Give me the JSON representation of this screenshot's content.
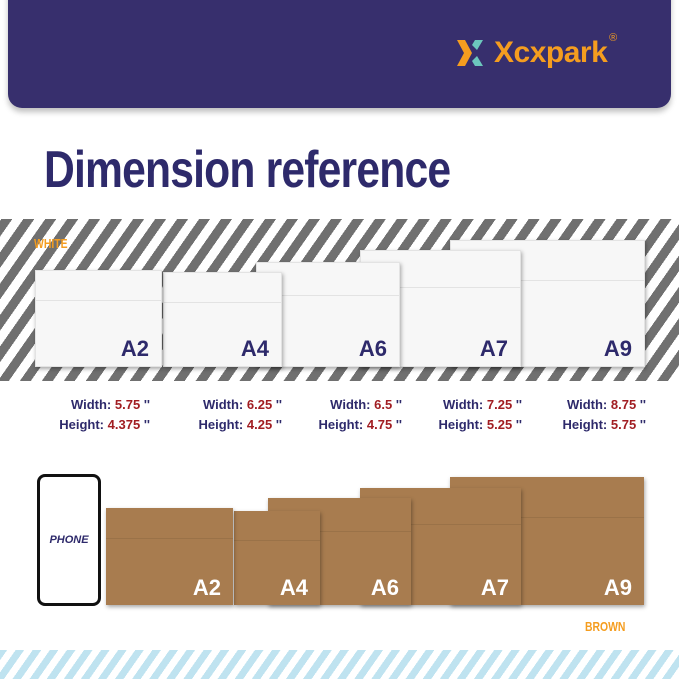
{
  "brand": {
    "name": "Xcxpark",
    "registered": "®",
    "icon": "x-logo-icon",
    "colors": {
      "banner": "#372f6d",
      "orange": "#f59d1f",
      "teal": "#6cc7bd"
    }
  },
  "title": "Dimension reference",
  "white": {
    "label": "WHITE",
    "envelopes": [
      "A2",
      "A4",
      "A6",
      "A7",
      "A9"
    ]
  },
  "dimensions": [
    {
      "width_label": "Width:",
      "width": "5.75",
      "height_label": "Height:",
      "height": "4.375",
      "unit": "''"
    },
    {
      "width_label": "Width:",
      "width": "6.25",
      "height_label": "Height:",
      "height": "4.25",
      "unit": "''"
    },
    {
      "width_label": "Width:",
      "width": "6.5",
      "height_label": "Height:",
      "height": "4.75",
      "unit": "''"
    },
    {
      "width_label": "Width:",
      "width": "7.25",
      "height_label": "Height:",
      "height": "5.25",
      "unit": "''"
    },
    {
      "width_label": "Width:",
      "width": "8.75",
      "height_label": "Height:",
      "height": "5.75",
      "unit": "''"
    }
  ],
  "phone": "PHONE",
  "brown": {
    "label": "BROWN",
    "envelopes": [
      "A2",
      "A4",
      "A6",
      "A7",
      "A9"
    ]
  }
}
